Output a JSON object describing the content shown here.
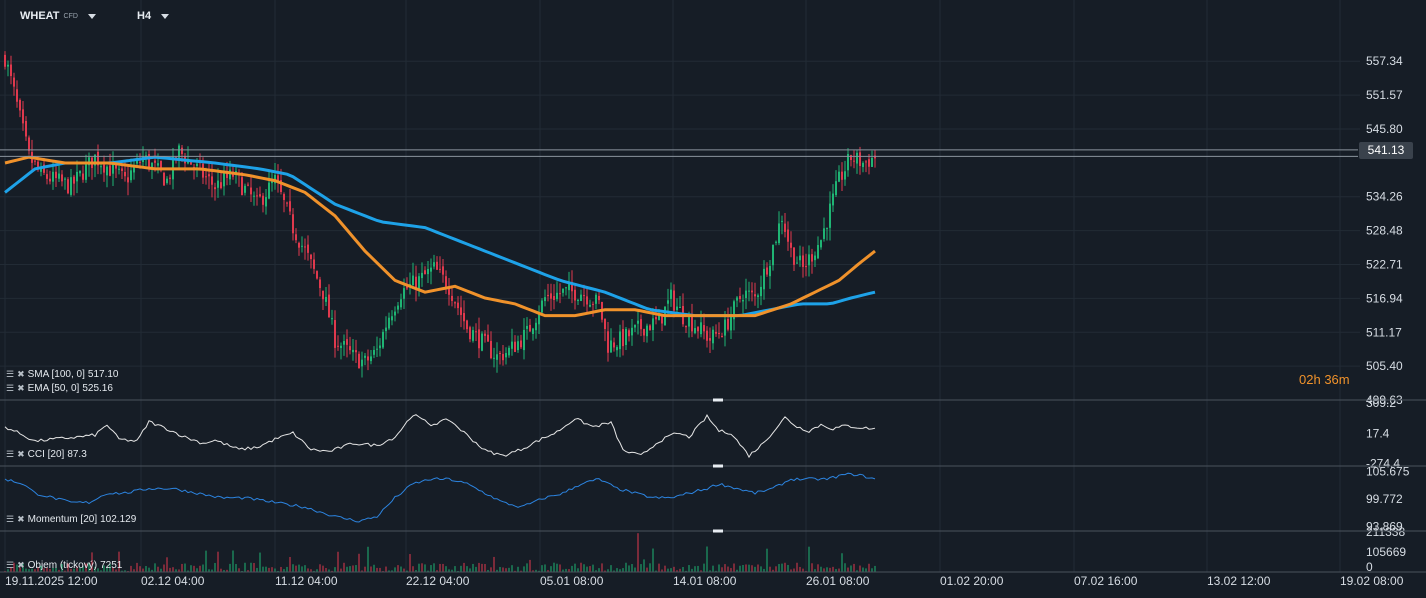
{
  "header": {
    "symbol": "WHEAT",
    "symbol_type": "CFD",
    "timeframe": "H4"
  },
  "countdown": {
    "hours": "02",
    "h_unit": "h",
    "minutes": "36",
    "m_unit": "m"
  },
  "colors": {
    "background": "#161d26",
    "grid": "#222b35",
    "candle_up": "#1fb574",
    "candle_down": "#e0394d",
    "sma": "#1ea2e8",
    "ema": "#f0922b",
    "cci": "#e6e6e6",
    "momentum": "#2c84e0",
    "axis_text": "#d7dde4"
  },
  "indicators": {
    "sma": {
      "label": "SMA [100, 0]",
      "value": "517.10"
    },
    "ema": {
      "label": "EMA [50, 0]",
      "value": "525.16"
    },
    "cci": {
      "label": "CCI [20]",
      "value": "87.3"
    },
    "momentum": {
      "label": "Momentum [20]",
      "value": "102.129"
    },
    "volume": {
      "label": "Objem (tickový)",
      "value": "7251"
    }
  },
  "chart_data": [
    {
      "type": "line",
      "panel": "price",
      "description_series": [
        "candlesticks",
        "SMA [100, 0]",
        "EMA [50, 0]"
      ],
      "ylim": [
        499.63,
        563
      ],
      "y_ticks": [
        "557.34",
        "551.57",
        "545.80",
        "534.26",
        "528.48",
        "522.71",
        "516.94",
        "511.17",
        "505.40",
        "499.63"
      ],
      "current_price": "541.13",
      "x_ticks": [
        "19.11.2025  12:00",
        "02.12  04:00",
        "11.12  04:00",
        "22.12  04:00",
        "05.01  08:00",
        "14.01  08:00",
        "26.01  08:00",
        "01.02  20:00",
        "07.02  16:00",
        "13.02  12:00",
        "19.02  08:00"
      ],
      "close_keypoints": [
        [
          0,
          558
        ],
        [
          3,
          552
        ],
        [
          8,
          541
        ],
        [
          12,
          538
        ],
        [
          22,
          536
        ],
        [
          30,
          541
        ],
        [
          40,
          537
        ],
        [
          46,
          541
        ],
        [
          54,
          537
        ],
        [
          58,
          542
        ],
        [
          64,
          539
        ],
        [
          70,
          536
        ],
        [
          76,
          538
        ],
        [
          84,
          533
        ],
        [
          90,
          537
        ],
        [
          96,
          529
        ],
        [
          100,
          525
        ],
        [
          106,
          518
        ],
        [
          110,
          510
        ],
        [
          116,
          507
        ],
        [
          120,
          506
        ],
        [
          124,
          508
        ],
        [
          128,
          514
        ],
        [
          132,
          518
        ],
        [
          138,
          520
        ],
        [
          143,
          522
        ],
        [
          148,
          519
        ],
        [
          154,
          512
        ],
        [
          160,
          509
        ],
        [
          164,
          507
        ],
        [
          168,
          508
        ],
        [
          174,
          511
        ],
        [
          180,
          517
        ],
        [
          186,
          518
        ],
        [
          192,
          518
        ],
        [
          198,
          516
        ],
        [
          201,
          509
        ],
        [
          206,
          510
        ],
        [
          212,
          512
        ],
        [
          218,
          513
        ],
        [
          222,
          517
        ],
        [
          226,
          514
        ],
        [
          231,
          512
        ],
        [
          235,
          510
        ],
        [
          240,
          512
        ],
        [
          246,
          518
        ],
        [
          250,
          517
        ],
        [
          255,
          524
        ],
        [
          259,
          531
        ],
        [
          262,
          525
        ],
        [
          266,
          522
        ],
        [
          272,
          527
        ],
        [
          278,
          537
        ],
        [
          282,
          541
        ],
        [
          286,
          540
        ],
        [
          290,
          541
        ]
      ],
      "sma_keypoints": [
        [
          0,
          535
        ],
        [
          10,
          539
        ],
        [
          20,
          540
        ],
        [
          35,
          540
        ],
        [
          50,
          541
        ],
        [
          70,
          540
        ],
        [
          85,
          539
        ],
        [
          95,
          538
        ],
        [
          110,
          533
        ],
        [
          125,
          530
        ],
        [
          140,
          529
        ],
        [
          155,
          526
        ],
        [
          170,
          523
        ],
        [
          185,
          520
        ],
        [
          200,
          518
        ],
        [
          215,
          515
        ],
        [
          230,
          514
        ],
        [
          245,
          514
        ],
        [
          255,
          515
        ],
        [
          265,
          516
        ],
        [
          275,
          516
        ],
        [
          282,
          517
        ],
        [
          290,
          518
        ]
      ],
      "ema_keypoints": [
        [
          0,
          540
        ],
        [
          8,
          541
        ],
        [
          20,
          540
        ],
        [
          35,
          540
        ],
        [
          50,
          539
        ],
        [
          65,
          539
        ],
        [
          80,
          538
        ],
        [
          90,
          537
        ],
        [
          100,
          535
        ],
        [
          110,
          531
        ],
        [
          120,
          525
        ],
        [
          130,
          520
        ],
        [
          140,
          518
        ],
        [
          150,
          519
        ],
        [
          160,
          517
        ],
        [
          170,
          516
        ],
        [
          180,
          514
        ],
        [
          190,
          514
        ],
        [
          200,
          515
        ],
        [
          210,
          515
        ],
        [
          220,
          514
        ],
        [
          230,
          514
        ],
        [
          240,
          514
        ],
        [
          250,
          514
        ],
        [
          256,
          515
        ],
        [
          262,
          516
        ],
        [
          270,
          518
        ],
        [
          278,
          520
        ],
        [
          285,
          523
        ],
        [
          290,
          525
        ]
      ]
    },
    {
      "type": "line",
      "panel": "cci",
      "series_name": "CCI [20]",
      "ylim": [
        -300,
        330
      ],
      "y_ticks": [
        "309.2",
        "17.4",
        "-274.4"
      ],
      "keypoints": [
        [
          0,
          80
        ],
        [
          6,
          0
        ],
        [
          10,
          -60
        ],
        [
          16,
          -40
        ],
        [
          24,
          -20
        ],
        [
          30,
          0
        ],
        [
          34,
          100
        ],
        [
          38,
          -40
        ],
        [
          44,
          -60
        ],
        [
          48,
          130
        ],
        [
          54,
          60
        ],
        [
          60,
          -20
        ],
        [
          66,
          -80
        ],
        [
          70,
          -50
        ],
        [
          78,
          -140
        ],
        [
          84,
          -120
        ],
        [
          90,
          -40
        ],
        [
          96,
          20
        ],
        [
          102,
          -140
        ],
        [
          108,
          -160
        ],
        [
          116,
          -80
        ],
        [
          124,
          -100
        ],
        [
          130,
          -20
        ],
        [
          136,
          200
        ],
        [
          142,
          100
        ],
        [
          148,
          150
        ],
        [
          154,
          0
        ],
        [
          160,
          -150
        ],
        [
          166,
          -200
        ],
        [
          172,
          -140
        ],
        [
          178,
          -50
        ],
        [
          184,
          30
        ],
        [
          190,
          160
        ],
        [
          196,
          80
        ],
        [
          202,
          120
        ],
        [
          206,
          -150
        ],
        [
          212,
          -200
        ],
        [
          218,
          -60
        ],
        [
          224,
          20
        ],
        [
          228,
          -20
        ],
        [
          234,
          180
        ],
        [
          238,
          40
        ],
        [
          242,
          20
        ],
        [
          248,
          -200
        ],
        [
          252,
          -100
        ],
        [
          256,
          30
        ],
        [
          260,
          170
        ],
        [
          264,
          80
        ],
        [
          268,
          40
        ],
        [
          272,
          100
        ],
        [
          276,
          60
        ],
        [
          280,
          90
        ],
        [
          286,
          70
        ],
        [
          290,
          60
        ]
      ]
    },
    {
      "type": "line",
      "panel": "momentum",
      "series_name": "Momentum [20]",
      "ylim": [
        92.9,
        106.6
      ],
      "y_ticks": [
        "105.675",
        "99.772",
        "93.869"
      ],
      "keypoints": [
        [
          0,
          104
        ],
        [
          6,
          103
        ],
        [
          10,
          101
        ],
        [
          16,
          100
        ],
        [
          22,
          99
        ],
        [
          28,
          99
        ],
        [
          34,
          101
        ],
        [
          40,
          101
        ],
        [
          48,
          102
        ],
        [
          56,
          102
        ],
        [
          64,
          101
        ],
        [
          72,
          100
        ],
        [
          80,
          100
        ],
        [
          90,
          99
        ],
        [
          100,
          98
        ],
        [
          110,
          96
        ],
        [
          118,
          95
        ],
        [
          124,
          96
        ],
        [
          130,
          100
        ],
        [
          136,
          103
        ],
        [
          142,
          104
        ],
        [
          148,
          104
        ],
        [
          154,
          103
        ],
        [
          160,
          101
        ],
        [
          166,
          99
        ],
        [
          172,
          98
        ],
        [
          180,
          100
        ],
        [
          186,
          101
        ],
        [
          192,
          103
        ],
        [
          198,
          104
        ],
        [
          204,
          102
        ],
        [
          210,
          101
        ],
        [
          216,
          100
        ],
        [
          222,
          100
        ],
        [
          228,
          101
        ],
        [
          234,
          102
        ],
        [
          238,
          103
        ],
        [
          244,
          102
        ],
        [
          250,
          101
        ],
        [
          256,
          102
        ],
        [
          262,
          104
        ],
        [
          268,
          104
        ],
        [
          274,
          104
        ],
        [
          280,
          105
        ],
        [
          284,
          105
        ],
        [
          290,
          104
        ]
      ]
    },
    {
      "type": "bar",
      "panel": "volume",
      "series_name": "Objem (tickový)",
      "ylim": [
        0,
        211338
      ],
      "y_ticks": [
        "211338",
        "105669",
        "0"
      ]
    }
  ]
}
